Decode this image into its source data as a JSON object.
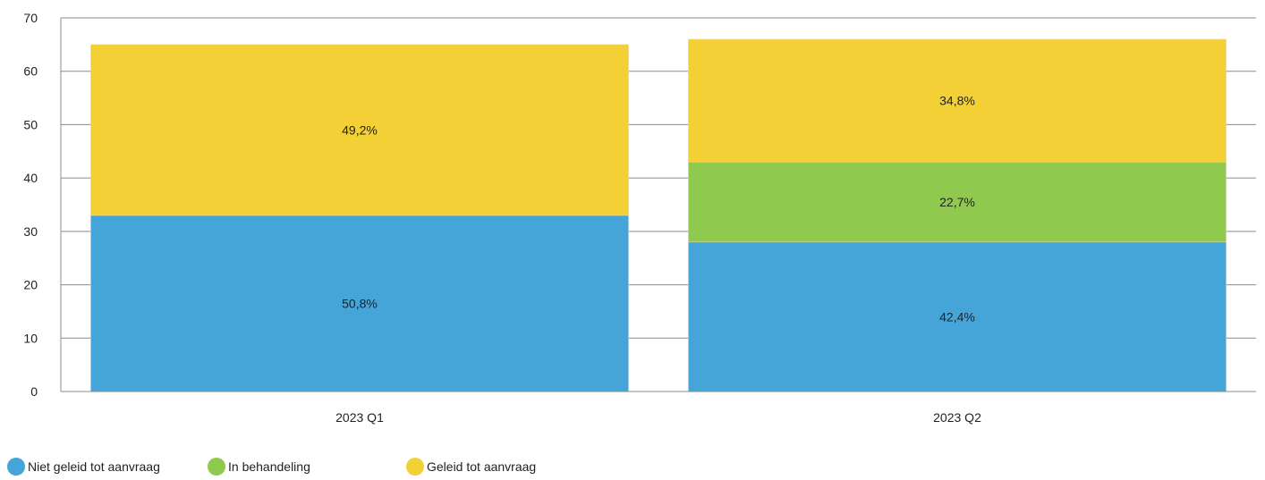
{
  "chart_data": {
    "type": "bar",
    "stacked": true,
    "categories": [
      "2023 Q1",
      "2023 Q2"
    ],
    "series": [
      {
        "name": "Niet geleid tot aanvraag",
        "color": "#45a5d9",
        "values": [
          33,
          28
        ],
        "labels": [
          "50,8%",
          "42,4%"
        ]
      },
      {
        "name": "In behandeling",
        "color": "#8fca4f",
        "values": [
          0,
          15
        ],
        "labels": [
          "",
          "22,7%"
        ]
      },
      {
        "name": "Geleid tot aanvraag",
        "color": "#f3d036",
        "values": [
          32,
          23
        ],
        "labels": [
          "49,2%",
          "34,8%"
        ]
      }
    ],
    "ylim": [
      0,
      70
    ],
    "yticks": [
      0,
      10,
      20,
      30,
      40,
      50,
      60,
      70
    ],
    "grid": true,
    "legend": "bottom-left",
    "title": "",
    "xlabel": "",
    "ylabel": ""
  }
}
